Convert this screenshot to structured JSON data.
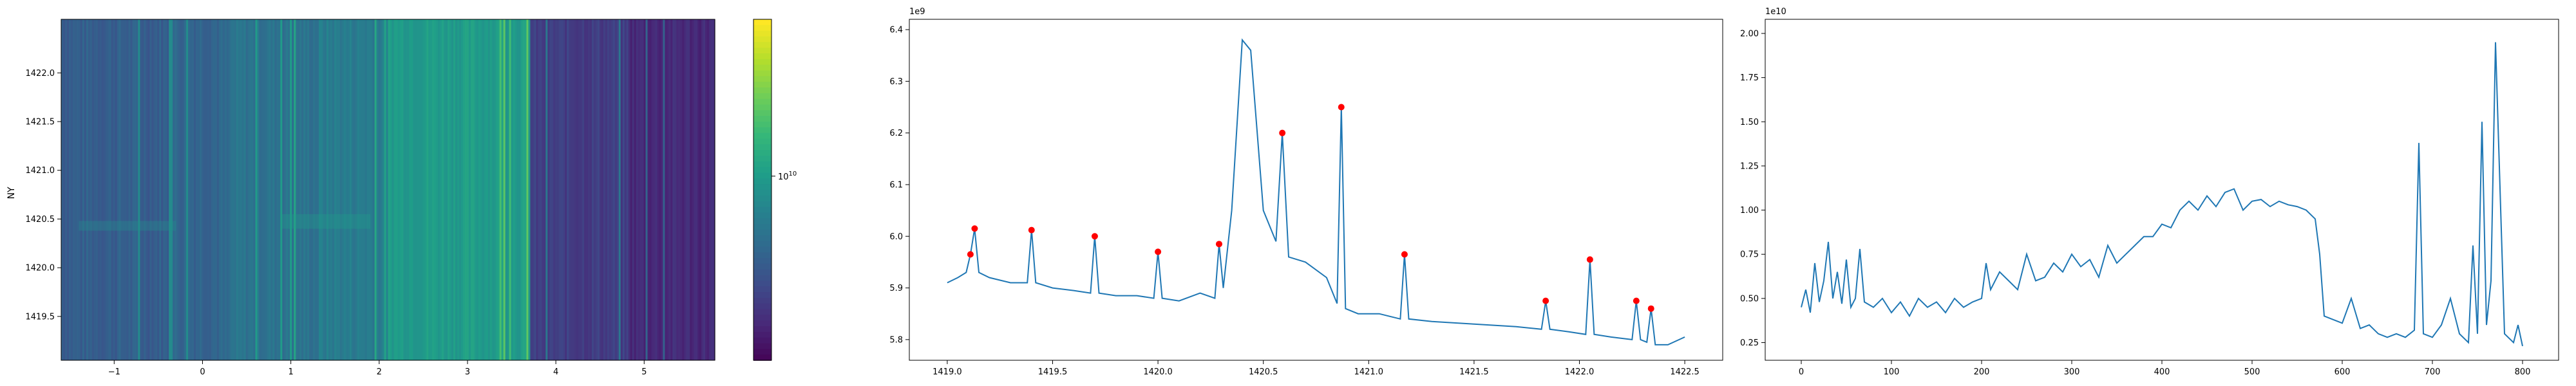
{
  "chart_data": [
    {
      "type": "heatmap",
      "title": "",
      "xlabel": "",
      "ylabel": "NY",
      "xlim": [
        -1.6,
        5.8
      ],
      "ylim": [
        1419.05,
        1422.55
      ],
      "xticks": [
        -1,
        0,
        1,
        2,
        3,
        4,
        5
      ],
      "xtick_labels": [
        "−1",
        "0",
        "1",
        "2",
        "3",
        "4",
        "5"
      ],
      "yticks": [
        1419.5,
        1420.0,
        1420.5,
        1421.0,
        1421.5,
        1422.0
      ],
      "ytick_labels": [
        "1419.5",
        "1420.0",
        "1420.5",
        "1421.0",
        "1421.5",
        "1422.0"
      ],
      "colormap": "viridis",
      "color_scale": "log",
      "colorbar": {
        "ticks": [
          10000000000.0
        ],
        "tick_labels": [
          "10"
        ],
        "tick_exponent": "10"
      },
      "column_bands": [
        {
          "x": [
            -1.6,
            -0.4
          ],
          "level": 0.3
        },
        {
          "x": [
            -0.4,
            0.3
          ],
          "level": 0.33
        },
        {
          "x": [
            0.3,
            1.3
          ],
          "level": 0.38
        },
        {
          "x": [
            1.3,
            2.1
          ],
          "level": 0.42
        },
        {
          "x": [
            2.1,
            3.7
          ],
          "level": 0.55
        },
        {
          "x": [
            3.7,
            4.8
          ],
          "level": 0.18
        },
        {
          "x": [
            4.8,
            5.8
          ],
          "level": 0.12
        }
      ]
    },
    {
      "type": "line",
      "title": "",
      "xlabel": "",
      "ylabel": "",
      "y_exponent_label": "1e9",
      "xlim": [
        1418.82,
        1422.68
      ],
      "ylim": [
        5.76,
        6.42
      ],
      "xticks": [
        1419.0,
        1419.5,
        1420.0,
        1420.5,
        1421.0,
        1421.5,
        1422.0,
        1422.5
      ],
      "xtick_labels": [
        "1419.0",
        "1419.5",
        "1420.0",
        "1420.5",
        "1421.0",
        "1421.5",
        "1422.0",
        "1422.5"
      ],
      "yticks": [
        5.8,
        5.9,
        6.0,
        6.1,
        6.2,
        6.3,
        6.4
      ],
      "ytick_labels": [
        "5.8",
        "5.9",
        "6.0",
        "6.1",
        "6.2",
        "6.3",
        "6.4"
      ],
      "line_color": "#1f77b4",
      "marker_color": "#ff0000",
      "x": [
        1419.0,
        1419.05,
        1419.09,
        1419.11,
        1419.13,
        1419.15,
        1419.2,
        1419.3,
        1419.38,
        1419.4,
        1419.42,
        1419.5,
        1419.6,
        1419.68,
        1419.7,
        1419.72,
        1419.8,
        1419.9,
        1419.98,
        1420.0,
        1420.02,
        1420.1,
        1420.2,
        1420.27,
        1420.29,
        1420.31,
        1420.35,
        1420.4,
        1420.44,
        1420.5,
        1420.56,
        1420.59,
        1420.62,
        1420.7,
        1420.8,
        1420.85,
        1420.87,
        1420.89,
        1420.95,
        1421.05,
        1421.15,
        1421.17,
        1421.19,
        1421.3,
        1421.5,
        1421.7,
        1421.82,
        1421.84,
        1421.86,
        1421.95,
        1422.03,
        1422.05,
        1422.07,
        1422.15,
        1422.25,
        1422.27,
        1422.29,
        1422.32,
        1422.34,
        1422.36,
        1422.42,
        1422.5
      ],
      "y": [
        5.91,
        5.92,
        5.93,
        5.965,
        6.015,
        5.93,
        5.92,
        5.91,
        5.91,
        6.012,
        5.91,
        5.9,
        5.895,
        5.89,
        6.0,
        5.89,
        5.885,
        5.885,
        5.88,
        5.97,
        5.88,
        5.875,
        5.89,
        5.88,
        5.985,
        5.9,
        6.05,
        6.38,
        6.36,
        6.05,
        5.99,
        6.2,
        5.96,
        5.95,
        5.92,
        5.87,
        6.25,
        5.86,
        5.85,
        5.85,
        5.84,
        5.965,
        5.84,
        5.835,
        5.83,
        5.825,
        5.82,
        5.875,
        5.82,
        5.815,
        5.81,
        5.955,
        5.81,
        5.805,
        5.8,
        5.875,
        5.8,
        5.795,
        5.86,
        5.79,
        5.79,
        5.805
      ],
      "peaks": [
        {
          "x": 1419.11,
          "y": 5.965
        },
        {
          "x": 1419.13,
          "y": 6.015
        },
        {
          "x": 1419.4,
          "y": 6.012
        },
        {
          "x": 1419.7,
          "y": 6.0
        },
        {
          "x": 1420.0,
          "y": 5.97
        },
        {
          "x": 1420.29,
          "y": 5.985
        },
        {
          "x": 1420.59,
          "y": 6.2
        },
        {
          "x": 1420.87,
          "y": 6.25
        },
        {
          "x": 1421.17,
          "y": 5.965
        },
        {
          "x": 1421.84,
          "y": 5.875
        },
        {
          "x": 1422.05,
          "y": 5.955
        },
        {
          "x": 1422.27,
          "y": 5.875
        },
        {
          "x": 1422.34,
          "y": 5.86
        }
      ]
    },
    {
      "type": "line",
      "title": "",
      "xlabel": "",
      "ylabel": "",
      "y_exponent_label": "1e10",
      "xlim": [
        -40,
        840
      ],
      "ylim": [
        0.15,
        2.08
      ],
      "xticks": [
        0,
        100,
        200,
        300,
        400,
        500,
        600,
        700,
        800
      ],
      "xtick_labels": [
        "0",
        "100",
        "200",
        "300",
        "400",
        "500",
        "600",
        "700",
        "800"
      ],
      "yticks": [
        0.25,
        0.5,
        0.75,
        1.0,
        1.25,
        1.5,
        1.75,
        2.0
      ],
      "ytick_labels": [
        "0.25",
        "0.50",
        "0.75",
        "1.00",
        "1.25",
        "1.50",
        "1.75",
        "2.00"
      ],
      "line_color": "#1f77b4",
      "x": [
        0,
        5,
        10,
        15,
        20,
        25,
        30,
        35,
        40,
        45,
        50,
        55,
        60,
        65,
        70,
        80,
        90,
        100,
        110,
        120,
        130,
        140,
        150,
        160,
        170,
        180,
        190,
        200,
        205,
        210,
        220,
        230,
        240,
        250,
        260,
        270,
        280,
        290,
        300,
        310,
        320,
        330,
        340,
        350,
        360,
        370,
        380,
        390,
        400,
        410,
        420,
        430,
        440,
        450,
        460,
        470,
        480,
        490,
        500,
        510,
        520,
        530,
        540,
        550,
        560,
        570,
        575,
        580,
        590,
        600,
        610,
        620,
        630,
        640,
        650,
        660,
        670,
        680,
        685,
        690,
        700,
        710,
        720,
        730,
        740,
        745,
        750,
        755,
        760,
        765,
        770,
        780,
        790,
        795,
        800
      ],
      "y": [
        0.45,
        0.55,
        0.42,
        0.7,
        0.48,
        0.6,
        0.82,
        0.5,
        0.65,
        0.47,
        0.72,
        0.45,
        0.5,
        0.78,
        0.48,
        0.45,
        0.5,
        0.42,
        0.48,
        0.4,
        0.5,
        0.45,
        0.48,
        0.42,
        0.5,
        0.45,
        0.48,
        0.5,
        0.7,
        0.55,
        0.65,
        0.6,
        0.55,
        0.75,
        0.6,
        0.62,
        0.7,
        0.65,
        0.75,
        0.68,
        0.72,
        0.62,
        0.8,
        0.7,
        0.75,
        0.8,
        0.85,
        0.85,
        0.92,
        0.9,
        1.0,
        1.05,
        1.0,
        1.08,
        1.02,
        1.1,
        1.12,
        1.0,
        1.05,
        1.06,
        1.02,
        1.05,
        1.03,
        1.02,
        1.0,
        0.95,
        0.75,
        0.4,
        0.38,
        0.36,
        0.5,
        0.33,
        0.35,
        0.3,
        0.28,
        0.3,
        0.28,
        0.32,
        1.38,
        0.3,
        0.28,
        0.35,
        0.5,
        0.3,
        0.25,
        0.8,
        0.3,
        1.5,
        0.35,
        0.6,
        1.95,
        0.3,
        0.25,
        0.35,
        0.23
      ]
    }
  ]
}
